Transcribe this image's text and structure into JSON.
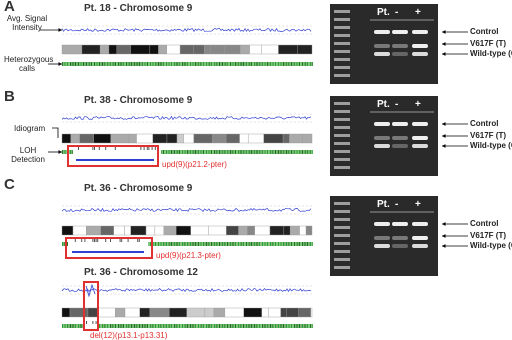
{
  "panels": [
    {
      "label": "A",
      "plots": [
        {
          "title": "Pt. 18 - Chromosome 9"
        }
      ],
      "annotations": [
        "Avg. Signal Intensity",
        "Heterozygous calls"
      ],
      "gel": {
        "lanes": [
          "Pt.",
          "-",
          "+"
        ],
        "bands": [
          "Control",
          "V617F (T)",
          "Wild-type (G)"
        ]
      }
    },
    {
      "label": "B",
      "plots": [
        {
          "title": "Pt. 38 - Chromosome 9",
          "region": "upd(9)(p21.2-pter)"
        }
      ],
      "annotations": [
        "Idiogram",
        "LOH Detection"
      ],
      "gel": {
        "lanes": [
          "Pt.",
          "-",
          "+"
        ],
        "bands": [
          "Control",
          "V617F (T)",
          "Wild-type (G)"
        ]
      }
    },
    {
      "label": "C",
      "plots": [
        {
          "title": "Pt. 36 - Chromosome 9",
          "region": "upd(9)(p21.3-pter)"
        },
        {
          "title": "Pt. 36 - Chromosome 12",
          "region": "del(12)(p13.1-p13.31)"
        }
      ],
      "gel": {
        "lanes": [
          "Pt.",
          "-",
          "+"
        ],
        "bands": [
          "Control",
          "V617F (T)",
          "Wild-type (G)"
        ]
      }
    }
  ]
}
